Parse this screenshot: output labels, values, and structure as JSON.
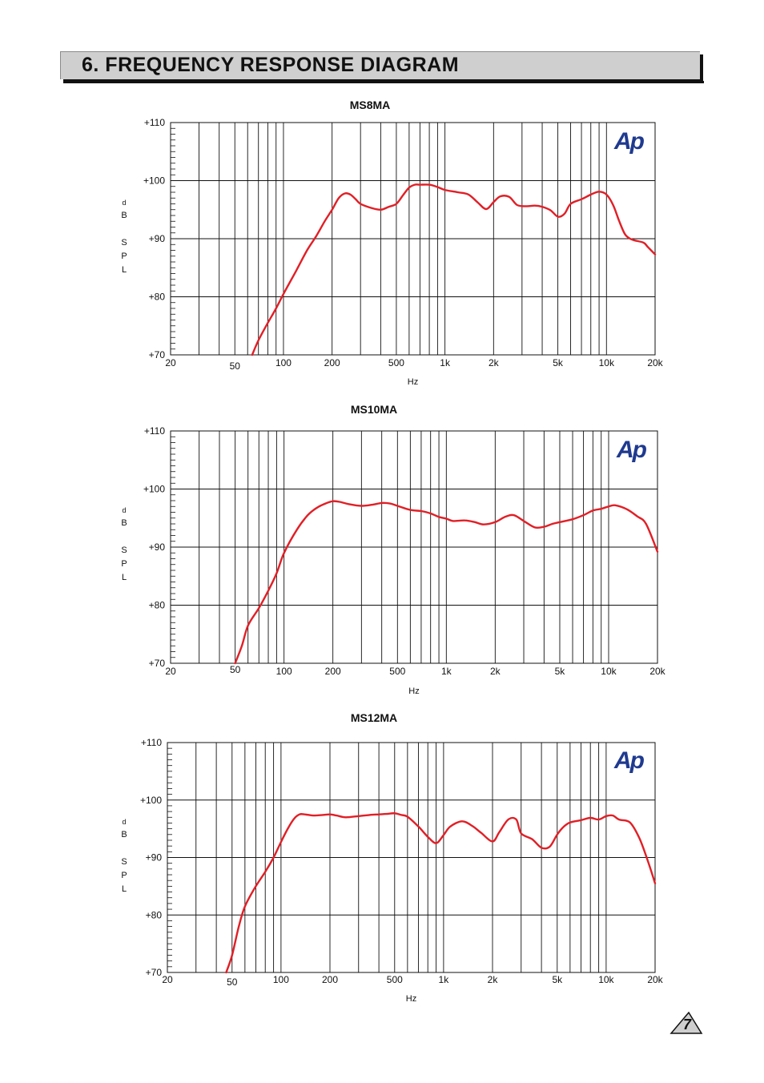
{
  "header": {
    "title": "6. FREQUENCY RESPONSE DIAGRAM"
  },
  "page_number": "7",
  "colors": {
    "curve": "#e11f26",
    "grid": "#111111",
    "header_bg": "#cfcfcf",
    "logo": "#1f3a8f"
  },
  "logo_text": "Ap",
  "axis_text": {
    "y_ticks": [
      "+110",
      "+100",
      "+90",
      "+80",
      "+70"
    ],
    "y_label": [
      "d",
      "B",
      "S",
      "P",
      "L"
    ],
    "x_ticks": [
      "20",
      "50",
      "100",
      "200",
      "500",
      "1k",
      "2k",
      "5k",
      "10k",
      "20k"
    ],
    "x_unit": "Hz"
  },
  "chart_data": [
    {
      "type": "line",
      "title": "MS8MA",
      "xlabel": "Hz",
      "ylabel": "dB SPL",
      "x_scale": "log",
      "xlim": [
        20,
        20000
      ],
      "ylim": [
        70,
        110
      ],
      "grid": true,
      "series": [
        {
          "x": [
            64,
            70,
            80,
            90,
            100,
            120,
            140,
            160,
            180,
            200,
            220,
            240,
            260,
            280,
            300,
            350,
            400,
            450,
            500,
            550,
            600,
            650,
            700,
            800,
            900,
            1000,
            1200,
            1400,
            1600,
            1800,
            2000,
            2200,
            2500,
            2800,
            3200,
            3600,
            4000,
            4500,
            5000,
            5500,
            6000,
            7000,
            8000,
            9000,
            10000,
            11000,
            12000,
            13000,
            14000,
            15000,
            17000,
            18000,
            20000
          ],
          "y": [
            70,
            72.5,
            75.5,
            78,
            80.5,
            84.5,
            88,
            90.5,
            93,
            95,
            97,
            97.8,
            97.6,
            96.8,
            96,
            95.3,
            95,
            95.5,
            96,
            97.5,
            98.8,
            99.3,
            99.3,
            99.3,
            98.9,
            98.4,
            98,
            97.6,
            96.2,
            95.1,
            96.3,
            97.3,
            97.2,
            95.8,
            95.6,
            95.7,
            95.5,
            94.9,
            93.8,
            94.3,
            96,
            96.8,
            97.6,
            98.1,
            97.6,
            95.8,
            93,
            90.8,
            90,
            89.7,
            89.3,
            88.6,
            87.3
          ]
        }
      ]
    },
    {
      "type": "line",
      "title": "MS10MA",
      "xlabel": "Hz",
      "ylabel": "dB SPL",
      "x_scale": "log",
      "xlim": [
        20,
        20000
      ],
      "ylim": [
        70,
        110
      ],
      "grid": true,
      "series": [
        {
          "x": [
            50,
            55,
            60,
            70,
            80,
            90,
            100,
            120,
            140,
            160,
            180,
            200,
            220,
            250,
            300,
            350,
            400,
            450,
            500,
            600,
            700,
            800,
            900,
            1000,
            1100,
            1300,
            1500,
            1700,
            2000,
            2300,
            2600,
            3000,
            3500,
            4000,
            4500,
            5000,
            6000,
            7000,
            8000,
            9000,
            10000,
            11000,
            13000,
            15000,
            17000,
            20000
          ],
          "y": [
            70,
            73,
            76.5,
            79.5,
            82.5,
            85.5,
            89,
            93,
            95.5,
            96.8,
            97.5,
            97.9,
            97.8,
            97.4,
            97.1,
            97.3,
            97.6,
            97.5,
            97.1,
            96.4,
            96.2,
            95.8,
            95.2,
            94.9,
            94.5,
            94.6,
            94.3,
            93.9,
            94.3,
            95.2,
            95.5,
            94.5,
            93.4,
            93.5,
            94,
            94.3,
            94.8,
            95.5,
            96.3,
            96.6,
            97,
            97.2,
            96.5,
            95.3,
            94,
            89.2
          ]
        }
      ]
    },
    {
      "type": "line",
      "title": "MS12MA",
      "xlabel": "Hz",
      "ylabel": "dB SPL",
      "x_scale": "log",
      "xlim": [
        20,
        20000
      ],
      "ylim": [
        70,
        110
      ],
      "grid": true,
      "series": [
        {
          "x": [
            46,
            50,
            55,
            60,
            70,
            80,
            90,
            100,
            110,
            120,
            130,
            140,
            160,
            180,
            200,
            220,
            250,
            300,
            350,
            400,
            450,
            500,
            550,
            600,
            700,
            800,
            900,
            1000,
            1100,
            1300,
            1500,
            1700,
            2000,
            2200,
            2500,
            2800,
            3000,
            3500,
            4000,
            4500,
            5000,
            5500,
            6000,
            7000,
            8000,
            9000,
            10000,
            11000,
            12000,
            14000,
            16000,
            18000,
            20000
          ],
          "y": [
            70,
            73,
            78,
            81.5,
            85,
            87.5,
            90,
            92.7,
            95,
            96.7,
            97.5,
            97.5,
            97.3,
            97.4,
            97.5,
            97.3,
            97,
            97.2,
            97.4,
            97.5,
            97.6,
            97.7,
            97.4,
            97.1,
            95.4,
            93.6,
            92.5,
            93.9,
            95.4,
            96.3,
            95.5,
            94.3,
            92.8,
            94.4,
            96.6,
            96.6,
            94.2,
            93.2,
            91.7,
            91.9,
            94,
            95.4,
            96.1,
            96.5,
            96.9,
            96.6,
            97.2,
            97.3,
            96.6,
            96.1,
            93.4,
            89.5,
            85.5
          ]
        }
      ]
    }
  ]
}
